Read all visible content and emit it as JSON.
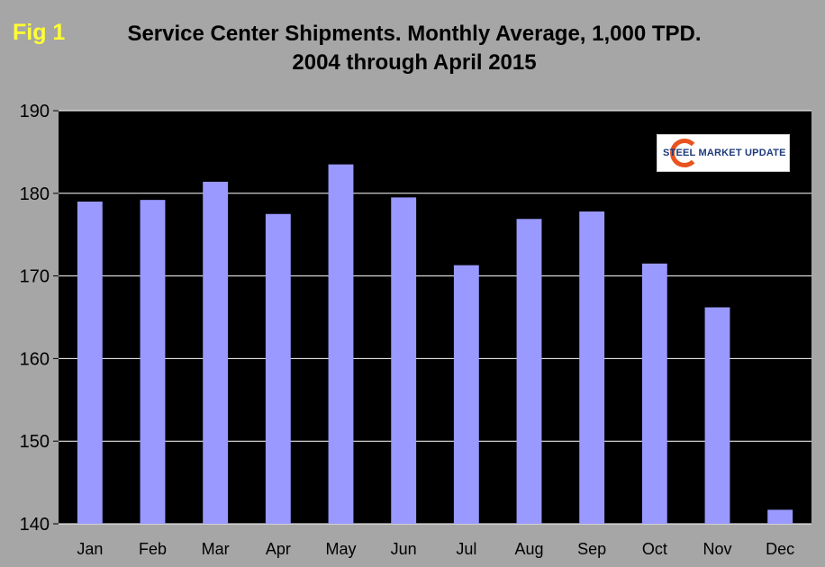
{
  "fig_label": "Fig 1",
  "chart_data": {
    "type": "bar",
    "title": "Service Center Shipments. Monthly Average, 1,000 TPD.",
    "subtitle": "2004 through April 2015",
    "categories": [
      "Jan",
      "Feb",
      "Mar",
      "Apr",
      "May",
      "Jun",
      "Jul",
      "Aug",
      "Sep",
      "Oct",
      "Nov",
      "Dec"
    ],
    "values": [
      179.0,
      179.2,
      181.4,
      177.5,
      183.5,
      179.5,
      171.3,
      176.9,
      177.8,
      171.5,
      166.2,
      141.7
    ],
    "ylim": [
      140,
      190
    ],
    "yticks": [
      140,
      150,
      160,
      170,
      180,
      190
    ],
    "grid": true,
    "bar_color": "#9999ff",
    "plot_background": "#000000"
  },
  "logo": {
    "text": "STEEL MARKET UPDATE",
    "accent_color": "#e8531f",
    "text_color": "#1d3a7a"
  }
}
